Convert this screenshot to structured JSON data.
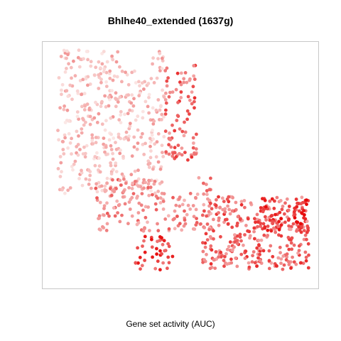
{
  "chart_data": {
    "type": "scatter",
    "title": "Bhlhe40_extended (1637g)",
    "xlabel": "Gene set activity (AUC)",
    "ylabel": "",
    "axes_visible": false,
    "grid": false,
    "legend": "none",
    "color_scale": {
      "low": "#fbe8e6",
      "mid": "#f08a8a",
      "high": "#e60000"
    },
    "regions": [
      {
        "name": "upper-left lobe",
        "xrange": [
          0.04,
          0.44
        ],
        "yrange": [
          0.38,
          0.98
        ],
        "n": 420,
        "activity_range": [
          0.0,
          0.45
        ],
        "seed": 11
      },
      {
        "name": "upper-right edge",
        "xrange": [
          0.44,
          0.56
        ],
        "yrange": [
          0.52,
          0.92
        ],
        "n": 90,
        "activity_range": [
          0.35,
          0.85
        ],
        "seed": 23
      },
      {
        "name": "middle band",
        "xrange": [
          0.18,
          0.62
        ],
        "yrange": [
          0.22,
          0.45
        ],
        "n": 170,
        "activity_range": [
          0.25,
          0.7
        ],
        "seed": 37
      },
      {
        "name": "lower-left cluster",
        "xrange": [
          0.33,
          0.48
        ],
        "yrange": [
          0.06,
          0.2
        ],
        "n": 40,
        "activity_range": [
          0.55,
          0.95
        ],
        "seed": 41
      },
      {
        "name": "right lobe",
        "xrange": [
          0.58,
          0.98
        ],
        "yrange": [
          0.06,
          0.37
        ],
        "n": 320,
        "activity_range": [
          0.35,
          0.85
        ],
        "seed": 53
      },
      {
        "name": "right lobe hot spot",
        "xrange": [
          0.8,
          0.98
        ],
        "yrange": [
          0.22,
          0.36
        ],
        "n": 60,
        "activity_range": [
          0.7,
          1.0
        ],
        "seed": 67
      }
    ]
  }
}
